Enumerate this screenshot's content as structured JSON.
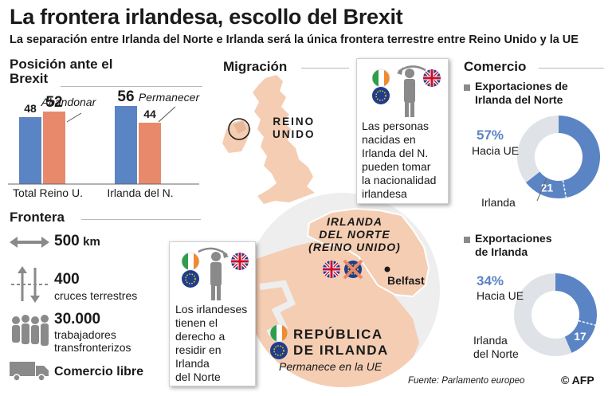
{
  "header": {
    "title": "La frontera irlandesa, escollo del Brexit",
    "subtitle": "La separación entre Irlanda del Norte e Irlanda será la única frontera terrestre entre Reino Unido y la UE"
  },
  "colors": {
    "leave": "#5b84c4",
    "remain": "#e8896c",
    "land": "#f4cdb3",
    "eu_blue": "#1f3d8c",
    "grey": "#8a8a8a"
  },
  "position": {
    "heading_line1": "Posición ante el",
    "heading_line2": "Brexit",
    "leave_label": "Abandonar",
    "remain_label": "Permanecer"
  },
  "migration": {
    "heading": "Migración",
    "uk_label_1": "REINO",
    "uk_label_2": "UNIDO",
    "box1": [
      "Las personas",
      "nacidas en",
      "Irlanda del N.",
      "pueden tomar",
      "la nacionalidad",
      "irlandesa"
    ],
    "box2": [
      "Los irlandeses",
      "tienen el",
      "derecho a",
      "residir en",
      "Irlanda",
      "del Norte"
    ],
    "ni_label": [
      "IRLANDA",
      "DEL NORTE",
      "(REINO UNIDO)"
    ],
    "belfast": "Belfast",
    "roi_label": [
      "REPÚBLICA",
      "DE IRLANDA"
    ],
    "roi_note": "Permanece en la UE"
  },
  "frontera": {
    "heading": "Frontera",
    "km_value": "500",
    "km_unit": "km",
    "crossings_value": "400",
    "crossings_label": "cruces terrestres",
    "workers_value": "30.000",
    "workers_label_1": "trabajadores",
    "workers_label_2": "transfronterizos",
    "trade": "Comercio libre"
  },
  "commerce": {
    "heading": "Comercio",
    "ni_exports_1": "Exportaciones de",
    "ni_exports_2": "Irlanda del Norte",
    "ni_pct": "57%",
    "ni_pct_label": "Hacia UE",
    "ni_sub_label": "Irlanda",
    "roi_exports_1": "Exportaciones",
    "roi_exports_2": "de Irlanda",
    "roi_pct": "34%",
    "roi_pct_label": "Hacia UE",
    "roi_sub_label_1": "Irlanda",
    "roi_sub_label_2": "del Norte"
  },
  "footer": {
    "source": "Fuente: Parlamento europeo",
    "credit": "© AFP"
  },
  "chart_data": [
    {
      "type": "bar",
      "title": "Posición ante el Brexit",
      "categories": [
        "Total Reino U.",
        "Irlanda del N."
      ],
      "series": [
        {
          "name": "Abandonar",
          "values": [
            52,
            44
          ]
        },
        {
          "name": "Permanecer",
          "values": [
            48,
            56
          ]
        }
      ],
      "ylim": [
        0,
        60
      ],
      "grid": false
    },
    {
      "type": "pie",
      "title": "Exportaciones de Irlanda del Norte",
      "slices": [
        {
          "label": "Hacia UE",
          "value": 57
        },
        {
          "label": "Irlanda",
          "value": 21
        },
        {
          "label": "",
          "value": 43
        }
      ]
    },
    {
      "type": "pie",
      "title": "Exportaciones de Irlanda",
      "slices": [
        {
          "label": "Hacia UE",
          "value": 34
        },
        {
          "label": "Irlanda del Norte",
          "value": 17
        },
        {
          "label": "",
          "value": 66
        }
      ]
    }
  ]
}
